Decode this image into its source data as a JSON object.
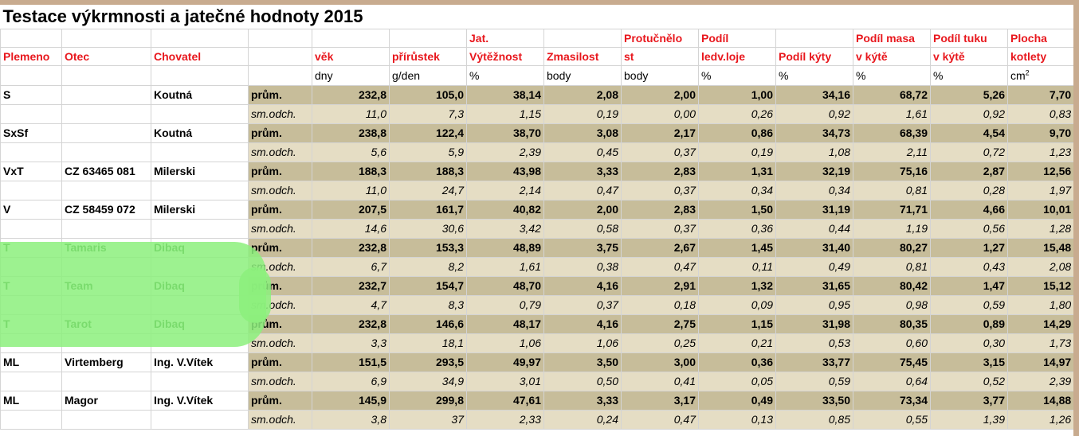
{
  "title": "Testace výkrmnosti a jatečné hodnoty 2015",
  "headers": {
    "plemeno": "Plemeno",
    "otec": "Otec",
    "chovatel": "Chovatel",
    "vek": "věk",
    "prirustek": "přírůstek",
    "jat_line1": "Jat.",
    "jat_line2": "Výtěžnost",
    "zmasilost": "Zmasilost",
    "protucnelost_line1": "Protučnělo",
    "protucnelost_line2": "st",
    "ledv_line1": "Podíl",
    "ledv_line2": "ledv.loje",
    "kyta": "Podíl kýty",
    "masa_line1": "Podíl masa",
    "masa_line2": "v kýtě",
    "tuku_line1": "Podíl tuku",
    "tuku_line2": "v kýtě",
    "plocha_line1": "Plocha",
    "plocha_line2": "kotlety"
  },
  "units": {
    "vek": "dny",
    "prirustek": "g/den",
    "jat": "%",
    "zmasilost": "body",
    "protucnelost": "body",
    "ledv": "%",
    "kyta": "%",
    "masa": "%",
    "tuku": "%",
    "plocha_base": "cm",
    "plocha_exp": "2"
  },
  "rows": [
    {
      "plemeno": "S",
      "otec": "",
      "chovatel": "Koutná",
      "highlight": false,
      "avg": {
        "stat": "prům.",
        "values": [
          "232,8",
          "105,0",
          "38,14",
          "2,08",
          "2,00",
          "1,00",
          "34,16",
          "68,72",
          "5,26",
          "7,70"
        ]
      },
      "sd": {
        "stat": "sm.odch.",
        "values": [
          "11,0",
          "7,3",
          "1,15",
          "0,19",
          "0,00",
          "0,26",
          "0,92",
          "1,61",
          "0,92",
          "0,83"
        ]
      }
    },
    {
      "plemeno": "SxSf",
      "otec": "",
      "chovatel": "Koutná",
      "highlight": false,
      "avg": {
        "stat": "prům.",
        "values": [
          "238,8",
          "122,4",
          "38,70",
          "3,08",
          "2,17",
          "0,86",
          "34,73",
          "68,39",
          "4,54",
          "9,70"
        ]
      },
      "sd": {
        "stat": "sm.odch.",
        "values": [
          "5,6",
          "5,9",
          "2,39",
          "0,45",
          "0,37",
          "0,19",
          "1,08",
          "2,11",
          "0,72",
          "1,23"
        ]
      }
    },
    {
      "plemeno": "VxT",
      "otec": "CZ 63465 081",
      "chovatel": "Milerski",
      "highlight": false,
      "avg": {
        "stat": "prům.",
        "values": [
          "188,3",
          "188,3",
          "43,98",
          "3,33",
          "2,83",
          "1,31",
          "32,19",
          "75,16",
          "2,87",
          "12,56"
        ]
      },
      "sd": {
        "stat": "sm.odch.",
        "values": [
          "11,0",
          "24,7",
          "2,14",
          "0,47",
          "0,37",
          "0,34",
          "0,34",
          "0,81",
          "0,28",
          "1,97"
        ]
      }
    },
    {
      "plemeno": "V",
      "otec": "CZ 58459 072",
      "chovatel": "Milerski",
      "highlight": false,
      "avg": {
        "stat": "prům.",
        "values": [
          "207,5",
          "161,7",
          "40,82",
          "2,00",
          "2,83",
          "1,50",
          "31,19",
          "71,71",
          "4,66",
          "10,01"
        ]
      },
      "sd": {
        "stat": "sm.odch.",
        "values": [
          "14,6",
          "30,6",
          "3,42",
          "0,58",
          "0,37",
          "0,36",
          "0,44",
          "1,19",
          "0,56",
          "1,28"
        ]
      }
    },
    {
      "plemeno": "T",
      "otec": "Tamaris",
      "chovatel": "Dibaq",
      "highlight": true,
      "avg": {
        "stat": "prům.",
        "values": [
          "232,8",
          "153,3",
          "48,89",
          "3,75",
          "2,67",
          "1,45",
          "31,40",
          "80,27",
          "1,27",
          "15,48"
        ]
      },
      "sd": {
        "stat": "sm.odch.",
        "values": [
          "6,7",
          "8,2",
          "1,61",
          "0,38",
          "0,47",
          "0,11",
          "0,49",
          "0,81",
          "0,43",
          "2,08"
        ]
      }
    },
    {
      "plemeno": "T",
      "otec": "Team",
      "chovatel": "Dibaq",
      "highlight": true,
      "avg": {
        "stat": "prům.",
        "values": [
          "232,7",
          "154,7",
          "48,70",
          "4,16",
          "2,91",
          "1,32",
          "31,65",
          "80,42",
          "1,47",
          "15,12"
        ]
      },
      "sd": {
        "stat": "sm.odch.",
        "values": [
          "4,7",
          "8,3",
          "0,79",
          "0,37",
          "0,18",
          "0,09",
          "0,95",
          "0,98",
          "0,59",
          "1,80"
        ]
      }
    },
    {
      "plemeno": "T",
      "otec": "Tarot",
      "chovatel": "Dibaq",
      "highlight": true,
      "avg": {
        "stat": "prům.",
        "values": [
          "232,8",
          "146,6",
          "48,17",
          "4,16",
          "2,75",
          "1,15",
          "31,98",
          "80,35",
          "0,89",
          "14,29"
        ]
      },
      "sd": {
        "stat": "sm.odch.",
        "values": [
          "3,3",
          "18,1",
          "1,06",
          "1,06",
          "0,25",
          "0,21",
          "0,53",
          "0,60",
          "0,30",
          "1,73"
        ]
      }
    },
    {
      "plemeno": "ML",
      "otec": "Virtemberg",
      "chovatel": "Ing. V.Vítek",
      "highlight": false,
      "avg": {
        "stat": "prům.",
        "values": [
          "151,5",
          "293,5",
          "49,97",
          "3,50",
          "3,00",
          "0,36",
          "33,77",
          "75,45",
          "3,15",
          "14,97"
        ]
      },
      "sd": {
        "stat": "sm.odch.",
        "values": [
          "6,9",
          "34,9",
          "3,01",
          "0,50",
          "0,41",
          "0,05",
          "0,59",
          "0,64",
          "0,52",
          "2,39"
        ]
      }
    },
    {
      "plemeno": "ML",
      "otec": "Magor",
      "chovatel": "Ing. V.Vítek",
      "highlight": false,
      "avg": {
        "stat": "prům.",
        "values": [
          "145,9",
          "299,8",
          "47,61",
          "3,33",
          "3,17",
          "0,49",
          "33,50",
          "73,34",
          "3,77",
          "14,88"
        ]
      },
      "sd": {
        "stat": "sm.odch.",
        "values": [
          "3,8",
          "37",
          "2,33",
          "0,24",
          "0,47",
          "0,13",
          "0,85",
          "0,55",
          "1,39",
          "1,26"
        ]
      }
    }
  ]
}
